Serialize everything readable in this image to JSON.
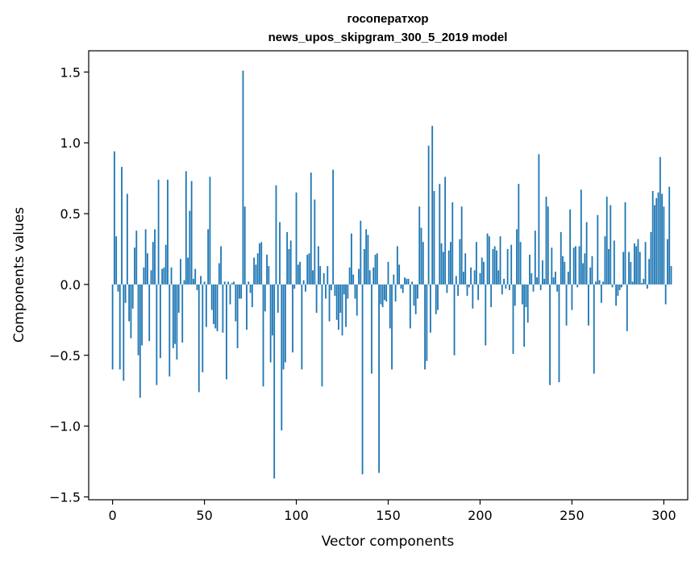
{
  "chart_data": {
    "type": "bar",
    "title": [
      "госоператхор",
      "news_upos_skipgram_300_5_2019 model"
    ],
    "xlabel": "Vector components",
    "ylabel": "Components values",
    "xlim": [
      -13,
      313
    ],
    "ylim": [
      -1.52,
      1.65
    ],
    "xticks": [
      0,
      50,
      100,
      150,
      200,
      250,
      300
    ],
    "yticks": [
      -1.5,
      -1.0,
      -0.5,
      0.0,
      0.5,
      1.0,
      1.5
    ],
    "ytick_labels": [
      "−1.5",
      "−1.0",
      "−0.5",
      "0.0",
      "0.5",
      "1.0",
      "1.5"
    ],
    "grid": false,
    "bar_color": "#1f77b4",
    "x_start": 0,
    "values": [
      -0.6,
      0.94,
      0.34,
      -0.05,
      -0.6,
      0.83,
      -0.68,
      -0.13,
      0.64,
      -0.26,
      -0.38,
      -0.17,
      0.26,
      0.38,
      -0.5,
      -0.8,
      -0.43,
      0.12,
      0.39,
      0.22,
      -0.4,
      0.1,
      0.3,
      0.39,
      -0.71,
      0.74,
      -0.52,
      0.11,
      0.12,
      0.28,
      0.74,
      -0.65,
      0.12,
      -0.45,
      -0.42,
      -0.53,
      -0.2,
      0.18,
      -0.41,
      0.03,
      0.8,
      0.19,
      0.52,
      0.73,
      0.04,
      0.11,
      -0.04,
      -0.76,
      0.06,
      -0.62,
      0.02,
      -0.3,
      0.39,
      0.76,
      -0.18,
      -0.28,
      -0.31,
      -0.33,
      0.15,
      0.27,
      -0.34,
      0.02,
      -0.67,
      0.02,
      -0.14,
      0.01,
      0.02,
      -0.26,
      -0.45,
      -0.1,
      -0.1,
      1.51,
      0.55,
      -0.32,
      0.02,
      -0.06,
      -0.16,
      0.19,
      0.14,
      0.22,
      0.29,
      0.3,
      -0.72,
      -0.19,
      0.21,
      0.13,
      -0.55,
      -0.36,
      -1.37,
      0.7,
      -0.2,
      0.44,
      -1.03,
      -0.6,
      -0.55,
      0.37,
      0.25,
      0.31,
      -0.48,
      -0.03,
      0.65,
      0.14,
      0.16,
      -0.6,
      0.03,
      -0.05,
      0.21,
      0.22,
      0.79,
      0.1,
      0.6,
      -0.2,
      0.27,
      0.13,
      -0.72,
      0.08,
      -0.1,
      0.13,
      -0.26,
      -0.04,
      0.81,
      -0.08,
      -0.25,
      -0.32,
      -0.2,
      -0.36,
      -0.07,
      -0.3,
      -0.1,
      0.12,
      0.36,
      0.07,
      -0.1,
      -0.22,
      0.11,
      0.45,
      -1.34,
      0.25,
      0.39,
      0.35,
      0.1,
      -0.63,
      0.12,
      0.21,
      0.22,
      -1.33,
      -0.14,
      -0.16,
      -0.11,
      -0.12,
      0.16,
      -0.31,
      -0.6,
      0.07,
      -0.12,
      0.27,
      0.14,
      -0.03,
      -0.06,
      0.05,
      0.04,
      0.04,
      -0.31,
      0.02,
      -0.15,
      -0.21,
      -0.1,
      0.55,
      0.4,
      0.3,
      -0.6,
      -0.54,
      0.98,
      -0.34,
      1.12,
      0.66,
      -0.21,
      -0.18,
      0.71,
      0.29,
      0.23,
      0.76,
      -0.06,
      0.24,
      0.3,
      0.58,
      -0.5,
      0.06,
      -0.08,
      0.32,
      0.55,
      0.09,
      0.22,
      -0.08,
      -0.02,
      0.12,
      -0.17,
      0.1,
      0.3,
      -0.11,
      0.08,
      0.19,
      0.16,
      -0.43,
      0.36,
      0.34,
      -0.16,
      0.25,
      0.27,
      0.24,
      0.1,
      0.34,
      -0.07,
      0.04,
      -0.03,
      0.25,
      -0.04,
      0.28,
      -0.49,
      -0.15,
      0.39,
      0.71,
      0.3,
      -0.14,
      -0.44,
      -0.16,
      -0.27,
      0.21,
      0.08,
      -0.05,
      0.38,
      0.05,
      0.92,
      -0.04,
      0.17,
      0.04,
      0.62,
      0.55,
      -0.71,
      0.26,
      0.05,
      0.09,
      -0.05,
      -0.69,
      0.37,
      0.2,
      0.16,
      -0.29,
      0.09,
      0.53,
      -0.18,
      0.26,
      0.27,
      -0.02,
      0.27,
      0.67,
      0.15,
      0.22,
      0.44,
      -0.29,
      0.12,
      0.2,
      -0.63,
      0.02,
      0.49,
      0.03,
      -0.13,
      0.02,
      0.34,
      0.62,
      0.25,
      0.56,
      -0.02,
      0.31,
      -0.15,
      -0.08,
      -0.04,
      -0.02,
      0.23,
      0.58,
      -0.33,
      0.23,
      0.16,
      0.02,
      0.29,
      0.27,
      0.32,
      0.23,
      0.01,
      0.04,
      0.3,
      -0.03,
      0.18,
      0.37,
      0.66,
      0.56,
      0.61,
      0.65,
      0.9,
      0.64,
      0.55,
      -0.14,
      0.32,
      0.69,
      0.13
    ]
  }
}
